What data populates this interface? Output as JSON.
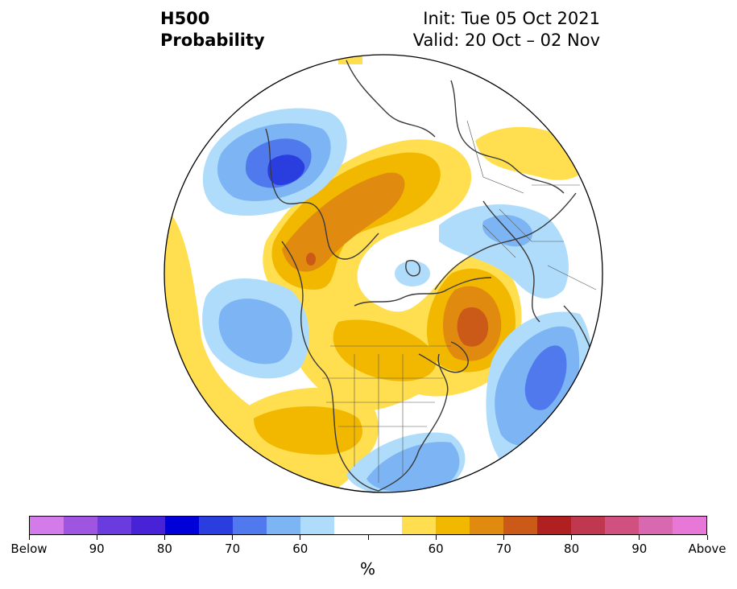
{
  "title": {
    "line1": "H500",
    "line2": "Probability"
  },
  "init_label": "Init: Tue 05 Oct 2021",
  "valid_label": "Valid: 20 Oct – 02 Nov",
  "colorbar": {
    "colors": [
      "#d37be8",
      "#a055e0",
      "#6a3ce0",
      "#4822d6",
      "#0000d8",
      "#2a3ee0",
      "#4f79ec",
      "#7cb4f4",
      "#aedcfa",
      "#ffffff",
      "#ffffff",
      "#ffdf50",
      "#f2b800",
      "#e08a10",
      "#cb5a18",
      "#b02020",
      "#c03850",
      "#d05080",
      "#d868b0",
      "#e878d8"
    ],
    "tick_labels": [
      "Below",
      "90",
      "80",
      "70",
      "60",
      "",
      "60",
      "70",
      "80",
      "90",
      "Above"
    ],
    "unit": "%"
  },
  "colors": {
    "below_light": "#aedcfa",
    "below_mid": "#7cb4f4",
    "below_strong": "#4f79ec",
    "below_stronger": "#2a3ee0",
    "above_light": "#ffdf50",
    "above_mid": "#f2b800",
    "above_strong": "#e08a10",
    "above_stronger": "#cb5a18",
    "coastline": "#3a3a3a"
  }
}
